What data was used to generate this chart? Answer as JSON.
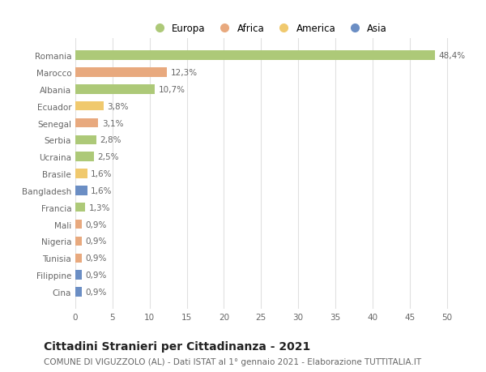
{
  "categories": [
    "Romania",
    "Marocco",
    "Albania",
    "Ecuador",
    "Senegal",
    "Serbia",
    "Ucraina",
    "Brasile",
    "Bangladesh",
    "Francia",
    "Mali",
    "Nigeria",
    "Tunisia",
    "Filippine",
    "Cina"
  ],
  "values": [
    48.4,
    12.3,
    10.7,
    3.8,
    3.1,
    2.8,
    2.5,
    1.6,
    1.6,
    1.3,
    0.9,
    0.9,
    0.9,
    0.9,
    0.9
  ],
  "labels": [
    "48,4%",
    "12,3%",
    "10,7%",
    "3,8%",
    "3,1%",
    "2,8%",
    "2,5%",
    "1,6%",
    "1,6%",
    "1,3%",
    "0,9%",
    "0,9%",
    "0,9%",
    "0,9%",
    "0,9%"
  ],
  "colors": [
    "#adc978",
    "#e8a97e",
    "#adc978",
    "#f0c96e",
    "#e8a97e",
    "#adc978",
    "#adc978",
    "#f0c96e",
    "#6b8ec4",
    "#adc978",
    "#e8a97e",
    "#e8a97e",
    "#e8a97e",
    "#6b8ec4",
    "#6b8ec4"
  ],
  "continent": [
    "Europa",
    "Africa",
    "Europa",
    "America",
    "Africa",
    "Europa",
    "Europa",
    "America",
    "Asia",
    "Europa",
    "Africa",
    "Africa",
    "Africa",
    "Asia",
    "Asia"
  ],
  "legend_labels": [
    "Europa",
    "Africa",
    "America",
    "Asia"
  ],
  "legend_colors": [
    "#adc978",
    "#e8a97e",
    "#f0c96e",
    "#6b8ec4"
  ],
  "title": "Cittadini Stranieri per Cittadinanza - 2021",
  "subtitle": "COMUNE DI VIGUZZOLO (AL) - Dati ISTAT al 1° gennaio 2021 - Elaborazione TUTTITALIA.IT",
  "xlim": [
    0,
    52
  ],
  "xticks": [
    0,
    5,
    10,
    15,
    20,
    25,
    30,
    35,
    40,
    45,
    50
  ],
  "bg_color": "#ffffff",
  "grid_color": "#e0e0e0",
  "bar_height": 0.55,
  "label_fontsize": 7.5,
  "title_fontsize": 10,
  "subtitle_fontsize": 7.5,
  "tick_fontsize": 7.5,
  "legend_fontsize": 8.5
}
